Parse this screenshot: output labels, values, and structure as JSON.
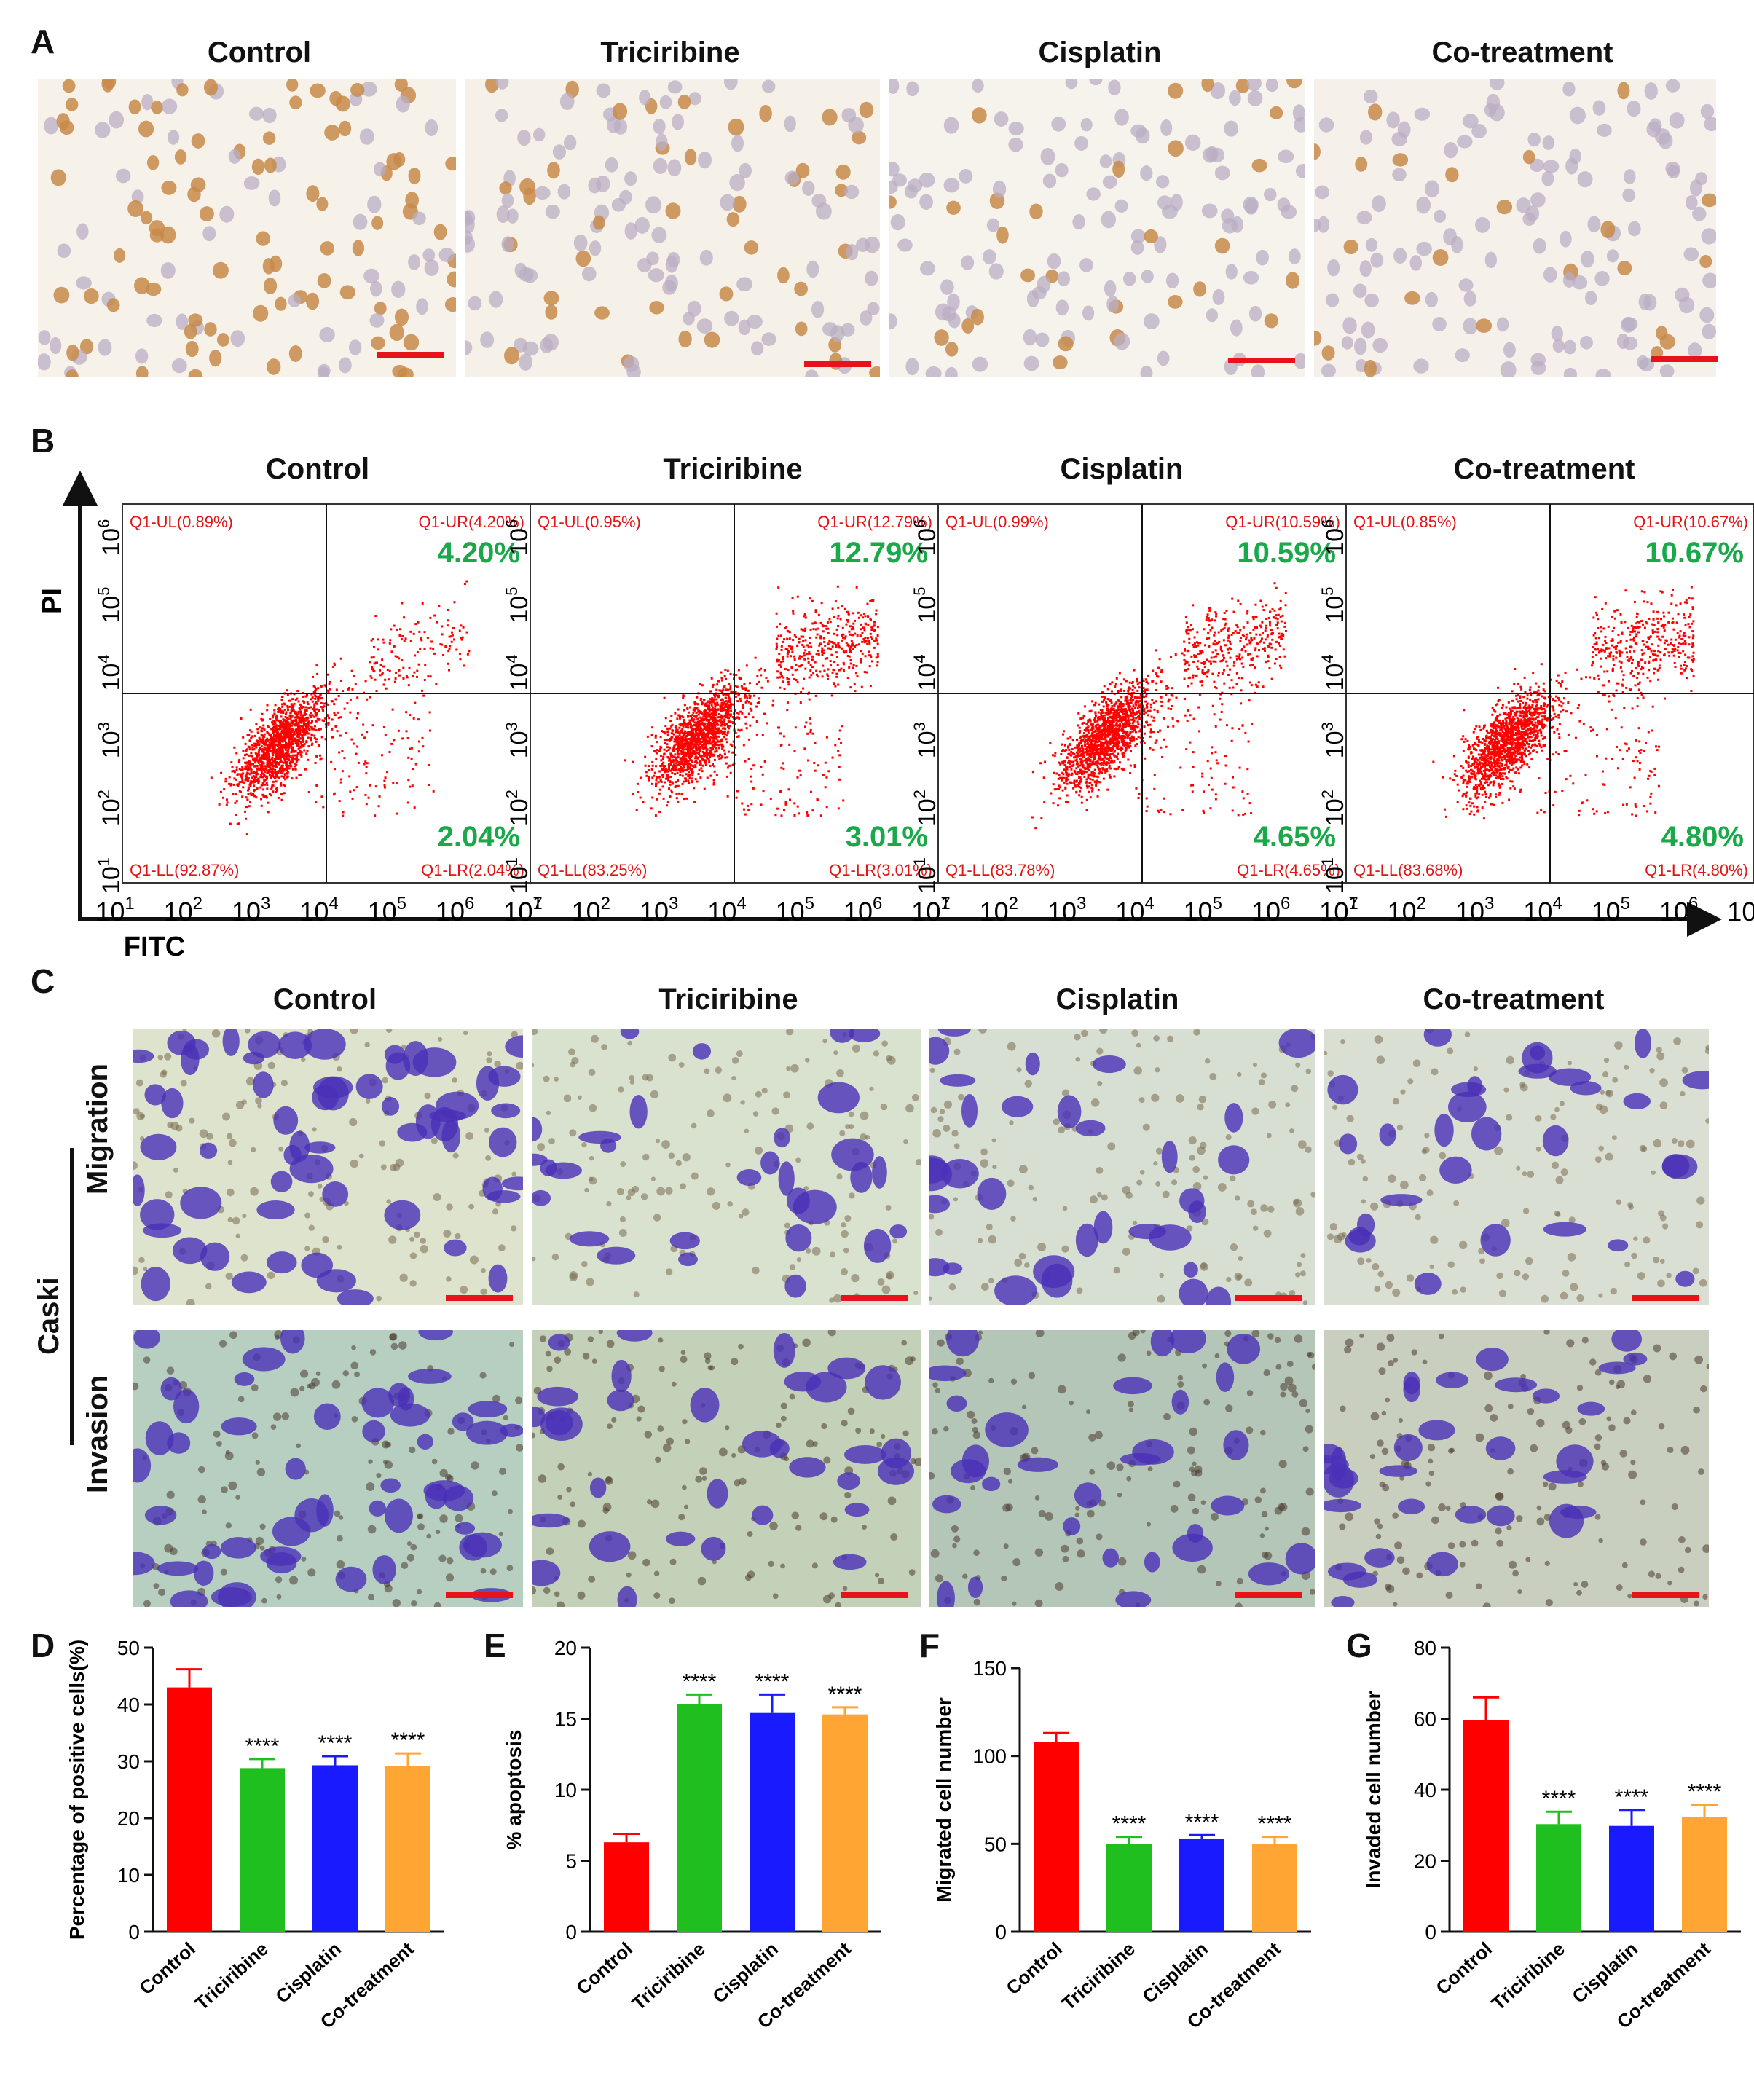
{
  "panels": {
    "A": "A",
    "B": "B",
    "C": "C",
    "D": "D",
    "E": "E",
    "F": "F",
    "G": "G"
  },
  "groups": [
    "Control",
    "Triciribine",
    "Cisplatin",
    "Co-treatment"
  ],
  "colors": {
    "control": "#ff0000",
    "triciribine": "#1fbf1f",
    "cisplatin": "#1a1aff",
    "cotreatment": "#ffa534",
    "scalebar": "#e8121c",
    "flow_dots": "#ff0000",
    "flow_pct": "#1aa84a"
  },
  "panelB": {
    "y_label": "PI",
    "x_label": "FITC",
    "x_ticks": [
      "10",
      "10",
      "10",
      "10",
      "10",
      "10",
      "10"
    ],
    "tick_exponents": [
      "1",
      "2",
      "3",
      "4",
      "5",
      "6",
      "7"
    ],
    "y_ticks": [
      "10",
      "10",
      "10",
      "10",
      "10",
      "10"
    ],
    "y_exponents": [
      "1",
      "2",
      "3",
      "4",
      "5",
      "6"
    ],
    "plots": [
      {
        "UL": "Q1-UL(0.89%)",
        "UR": "Q1-UR(4.20%)",
        "LL": "Q1-LL(92.87%)",
        "LR": "Q1-LR(2.04%)",
        "big_upper": "4.20%",
        "big_lower": "2.04%"
      },
      {
        "UL": "Q1-UL(0.95%)",
        "UR": "Q1-UR(12.79%)",
        "LL": "Q1-LL(83.25%)",
        "LR": "Q1-LR(3.01%)",
        "big_upper": "12.79%",
        "big_lower": "3.01%"
      },
      {
        "UL": "Q1-UL(0.99%)",
        "UR": "Q1-UR(10.59%)",
        "LL": "Q1-LL(83.78%)",
        "LR": "Q1-LR(4.65%)",
        "big_upper": "10.59%",
        "big_lower": "4.65%"
      },
      {
        "UL": "Q1-UL(0.85%)",
        "UR": "Q1-UR(10.67%)",
        "LL": "Q1-LL(83.68%)",
        "LR": "Q1-LR(4.80%)",
        "big_upper": "10.67%",
        "big_lower": "4.80%"
      }
    ]
  },
  "panelC": {
    "cell_line": "Caski",
    "rows": [
      "Migration",
      "Invasion"
    ]
  },
  "chart_data": [
    {
      "id": "D",
      "type": "bar",
      "categories": [
        "Control",
        "Triciribine",
        "Cisplatin",
        "Co-treatment"
      ],
      "values": [
        43,
        28.8,
        29.3,
        29.1
      ],
      "errors": [
        3.2,
        1.6,
        1.6,
        2.3
      ],
      "significance": [
        "",
        "****",
        "****",
        "****"
      ],
      "ylabel": "Percentage of positive cells(%)",
      "ylim": [
        0,
        50
      ],
      "yticks": [
        "0",
        "10",
        "20",
        "30",
        "40",
        "50"
      ]
    },
    {
      "id": "E",
      "type": "bar",
      "categories": [
        "Control",
        "Triciribine",
        "Cisplatin",
        "Co-treatment"
      ],
      "values": [
        6.3,
        16.0,
        15.4,
        15.3
      ],
      "errors": [
        0.6,
        0.7,
        1.3,
        0.5
      ],
      "significance": [
        "",
        "****",
        "****",
        "****"
      ],
      "ylabel": "% apoptosis",
      "ylim": [
        0,
        20
      ],
      "yticks": [
        "0",
        "5",
        "10",
        "15",
        "20"
      ]
    },
    {
      "id": "F",
      "type": "bar",
      "categories": [
        "Control",
        "Triciribine",
        "Cisplatin",
        "Co-treatment"
      ],
      "values": [
        108,
        50,
        53,
        50
      ],
      "errors": [
        5,
        4,
        2,
        4
      ],
      "significance": [
        "",
        "****",
        "****",
        "****"
      ],
      "ylabel": "Migrated cell number",
      "ylim": [
        0,
        150
      ],
      "yticks": [
        "0",
        "50",
        "100",
        "150"
      ]
    },
    {
      "id": "G",
      "type": "bar",
      "categories": [
        "Control",
        "Triciribine",
        "Cisplatin",
        "Co-treatment"
      ],
      "values": [
        59.5,
        30.3,
        29.8,
        32.3
      ],
      "errors": [
        6.5,
        3.5,
        4.5,
        3.5
      ],
      "significance": [
        "",
        "****",
        "****",
        "****"
      ],
      "ylabel": "Invaded cell number",
      "ylim": [
        0,
        80
      ],
      "yticks": [
        "0",
        "20",
        "40",
        "60",
        "80"
      ]
    }
  ]
}
